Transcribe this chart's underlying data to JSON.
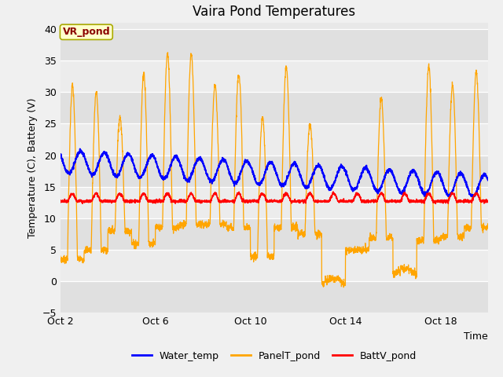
{
  "title": "Vaira Pond Temperatures",
  "ylabel": "Temperature (C), Battery (V)",
  "xlabel": "Time",
  "xlim_days": [
    0,
    18
  ],
  "ylim": [
    -5,
    41
  ],
  "yticks": [
    -5,
    0,
    5,
    10,
    15,
    20,
    25,
    30,
    35,
    40
  ],
  "xtick_positions": [
    0,
    4,
    8,
    12,
    16
  ],
  "xtick_labels": [
    "Oct 2",
    "Oct 6",
    "Oct 10",
    "Oct 14",
    "Oct 18"
  ],
  "water_color": "#0000ff",
  "panel_color": "#FFA500",
  "batt_color": "#ff0000",
  "fig_bg": "#f0f0f0",
  "plot_bg": "#e8e8e8",
  "band_colors": [
    "#e0e0e0",
    "#ececec"
  ],
  "vr_pond_label": "VR_pond",
  "legend_entries": [
    "Water_temp",
    "PanelT_pond",
    "BattV_pond"
  ],
  "title_fontsize": 12,
  "label_fontsize": 9,
  "tick_fontsize": 9,
  "legend_fontsize": 9
}
